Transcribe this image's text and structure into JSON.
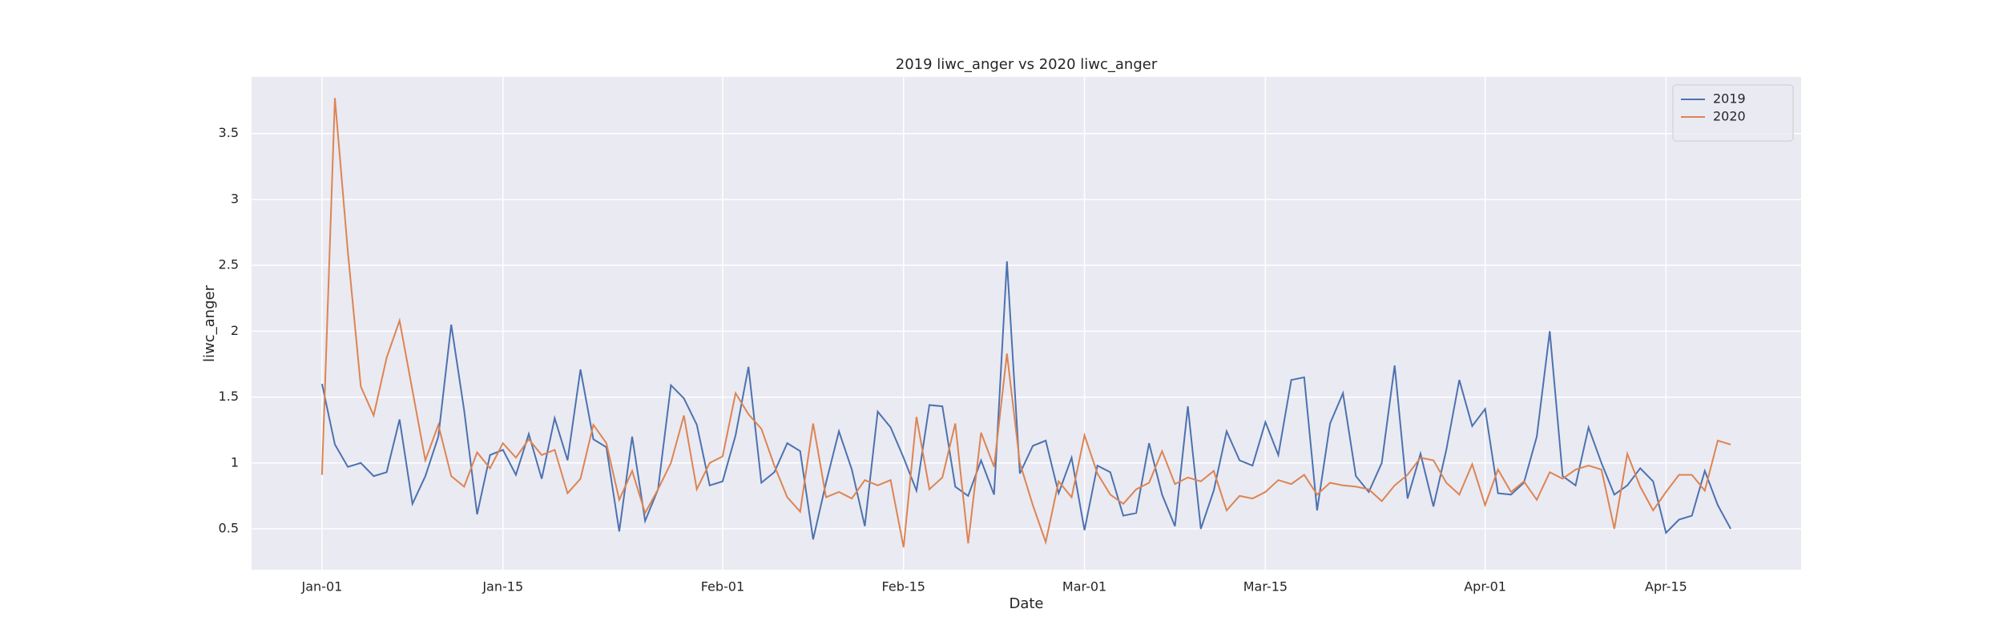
{
  "chart_data": {
    "type": "line",
    "title": "2019 liwc_anger vs 2020 liwc_anger",
    "x_label": "Date",
    "y_label": "liwc_anger",
    "categories": [
      "Jan-01",
      null,
      null,
      null,
      null,
      null,
      null,
      null,
      null,
      null,
      null,
      null,
      null,
      null,
      "Jan-15",
      null,
      null,
      null,
      null,
      null,
      null,
      null,
      null,
      null,
      null,
      null,
      null,
      null,
      null,
      null,
      null,
      "Feb-01",
      null,
      null,
      null,
      null,
      null,
      null,
      null,
      null,
      null,
      null,
      null,
      null,
      null,
      "Feb-15",
      null,
      null,
      null,
      null,
      null,
      null,
      null,
      null,
      null,
      null,
      null,
      null,
      null,
      "Mar-01",
      null,
      null,
      null,
      null,
      null,
      null,
      null,
      null,
      null,
      null,
      null,
      null,
      null,
      "Mar-15",
      null,
      null,
      null,
      null,
      null,
      null,
      null,
      null,
      null,
      null,
      null,
      null,
      null,
      null,
      null,
      null,
      "Apr-01",
      null,
      null,
      null,
      null,
      null,
      null,
      null,
      null,
      null,
      null,
      null,
      null,
      null,
      "Apr-15",
      null,
      null,
      null,
      null,
      null
    ],
    "series": [
      {
        "name": "2019",
        "color": "#4c72b0",
        "values": [
          1.6,
          1.14,
          0.97,
          1.0,
          0.9,
          0.93,
          1.33,
          0.69,
          0.9,
          1.2,
          2.05,
          1.4,
          0.61,
          1.06,
          1.1,
          0.91,
          1.22,
          0.88,
          1.34,
          1.02,
          1.71,
          1.18,
          1.12,
          0.48,
          1.2,
          0.56,
          0.8,
          1.59,
          1.49,
          1.29,
          0.83,
          0.86,
          1.21,
          1.73,
          0.85,
          0.93,
          1.15,
          1.09,
          0.42,
          0.85,
          1.24,
          0.95,
          0.52,
          1.39,
          1.27,
          1.04,
          0.79,
          1.44,
          1.43,
          0.82,
          0.75,
          1.02,
          0.76,
          2.53,
          0.92,
          1.13,
          1.17,
          0.77,
          1.04,
          0.49,
          0.98,
          0.93,
          0.6,
          0.62,
          1.15,
          0.76,
          0.52,
          1.43,
          0.5,
          0.79,
          1.24,
          1.02,
          0.98,
          1.31,
          1.06,
          1.63,
          1.65,
          0.64,
          1.3,
          1.53,
          0.9,
          0.78,
          1.0,
          1.74,
          0.73,
          1.07,
          0.67,
          1.1,
          1.63,
          1.28,
          1.41,
          0.77,
          0.76,
          0.85,
          1.2,
          2.0,
          0.9,
          0.83,
          1.27,
          1.0,
          0.76,
          0.83,
          0.96,
          0.86,
          0.47,
          0.57,
          0.6,
          0.94,
          0.68,
          0.5
        ]
      },
      {
        "name": "2020",
        "color": "#dd8452",
        "values": [
          0.91,
          3.77,
          2.6,
          1.58,
          1.36,
          1.8,
          2.08,
          1.55,
          1.02,
          1.29,
          0.9,
          0.82,
          1.08,
          0.96,
          1.15,
          1.04,
          1.18,
          1.06,
          1.1,
          0.77,
          0.88,
          1.29,
          1.15,
          0.72,
          0.94,
          0.62,
          0.8,
          1.0,
          1.36,
          0.8,
          1.0,
          1.05,
          1.53,
          1.37,
          1.26,
          0.98,
          0.74,
          0.63,
          1.3,
          0.74,
          0.78,
          0.73,
          0.87,
          0.83,
          0.87,
          0.36,
          1.35,
          0.8,
          0.89,
          1.3,
          0.39,
          1.23,
          0.97,
          1.83,
          1.0,
          0.68,
          0.4,
          0.86,
          0.74,
          1.21,
          0.92,
          0.76,
          0.69,
          0.8,
          0.85,
          1.09,
          0.84,
          0.89,
          0.86,
          0.94,
          0.64,
          0.75,
          0.73,
          0.78,
          0.87,
          0.84,
          0.91,
          0.76,
          0.85,
          0.83,
          0.82,
          0.8,
          0.71,
          0.83,
          0.91,
          1.04,
          1.02,
          0.85,
          0.76,
          0.99,
          0.68,
          0.95,
          0.78,
          0.86,
          0.72,
          0.93,
          0.88,
          0.95,
          0.98,
          0.95,
          0.5,
          1.07,
          0.82,
          0.64,
          0.78,
          0.91,
          0.91,
          0.79,
          1.17,
          1.14
        ]
      }
    ],
    "ylim": [
      0.19,
      3.93
    ],
    "yticks": [
      0.5,
      1.0,
      1.5,
      2.0,
      2.5,
      3.0,
      3.5
    ],
    "grid": true,
    "legend": "upper right"
  }
}
